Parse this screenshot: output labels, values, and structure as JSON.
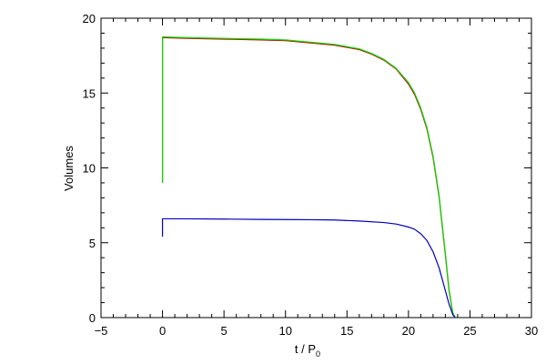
{
  "chart_data": {
    "type": "line",
    "xlabel": "t / P",
    "xlabel_subscript": "0",
    "ylabel": "Volumes",
    "xlim": [
      -5,
      30
    ],
    "ylim": [
      0,
      20
    ],
    "xticks": [
      -5,
      0,
      5,
      10,
      15,
      20,
      25,
      30
    ],
    "yticks": [
      0,
      5,
      10,
      15,
      20
    ],
    "grid": false,
    "series": [
      {
        "color": "#d40000",
        "x": [
          0,
          0,
          0.1,
          2,
          5,
          8,
          10,
          12,
          14,
          16,
          17,
          18,
          19,
          20,
          20.5,
          21,
          21.5,
          22,
          22.5,
          23,
          23.3,
          23.6,
          23.8
        ],
        "y": [
          9.0,
          18.7,
          18.7,
          18.65,
          18.6,
          18.55,
          18.5,
          18.35,
          18.2,
          17.9,
          17.6,
          17.2,
          16.6,
          15.6,
          14.9,
          13.9,
          12.6,
          10.7,
          8.0,
          4.2,
          1.8,
          0.3,
          0.0
        ]
      },
      {
        "color": "#00dd00",
        "x": [
          0,
          0,
          0.1,
          2,
          5,
          8,
          10,
          12,
          14,
          16,
          17,
          18,
          19,
          20,
          20.5,
          21,
          21.5,
          22,
          22.5,
          23,
          23.3,
          23.6,
          23.8
        ],
        "y": [
          9.0,
          18.75,
          18.75,
          18.7,
          18.65,
          18.6,
          18.55,
          18.4,
          18.25,
          17.95,
          17.65,
          17.25,
          16.65,
          15.7,
          15.0,
          14.0,
          12.7,
          10.8,
          8.1,
          4.3,
          1.9,
          0.35,
          0.0
        ]
      },
      {
        "color": "#0000bb",
        "x": [
          0,
          0,
          0.1,
          2,
          5,
          8,
          10,
          12,
          14,
          16,
          18,
          19,
          20,
          20.5,
          21,
          21.5,
          22,
          22.5,
          23,
          23.3,
          23.6,
          23.8
        ],
        "y": [
          5.4,
          6.6,
          6.6,
          6.6,
          6.58,
          6.56,
          6.55,
          6.54,
          6.52,
          6.45,
          6.35,
          6.25,
          6.05,
          5.9,
          5.6,
          5.15,
          4.4,
          3.3,
          1.8,
          0.9,
          0.2,
          0.0
        ]
      }
    ]
  }
}
